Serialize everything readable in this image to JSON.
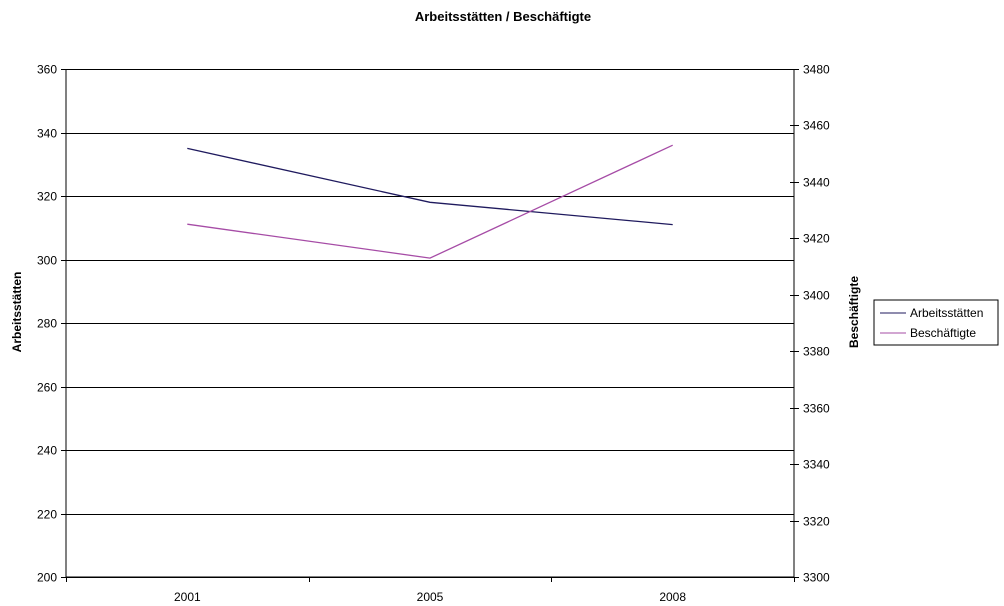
{
  "chart_data": {
    "type": "line",
    "title": "Arbeitsstätten / Beschäftigte",
    "categories": [
      "2001",
      "2005",
      "2008"
    ],
    "y_left": {
      "label": "Arbeitsstätten",
      "range": [
        200,
        360
      ],
      "ticks": [
        200,
        220,
        240,
        260,
        280,
        300,
        320,
        340,
        360
      ]
    },
    "y_right": {
      "label": "Beschäftigte",
      "range": [
        3300,
        3480
      ],
      "ticks": [
        3300,
        3320,
        3340,
        3360,
        3380,
        3400,
        3420,
        3440,
        3460,
        3480
      ]
    },
    "series": [
      {
        "name": "Arbeitsstätten",
        "axis": "left",
        "color": "#1f1a5e",
        "values": [
          335,
          318,
          311
        ]
      },
      {
        "name": "Beschäftigte",
        "axis": "right",
        "color": "#a64ca6",
        "values": [
          3425,
          3413,
          3453
        ]
      }
    ],
    "grid": true,
    "legend_position": "right"
  }
}
